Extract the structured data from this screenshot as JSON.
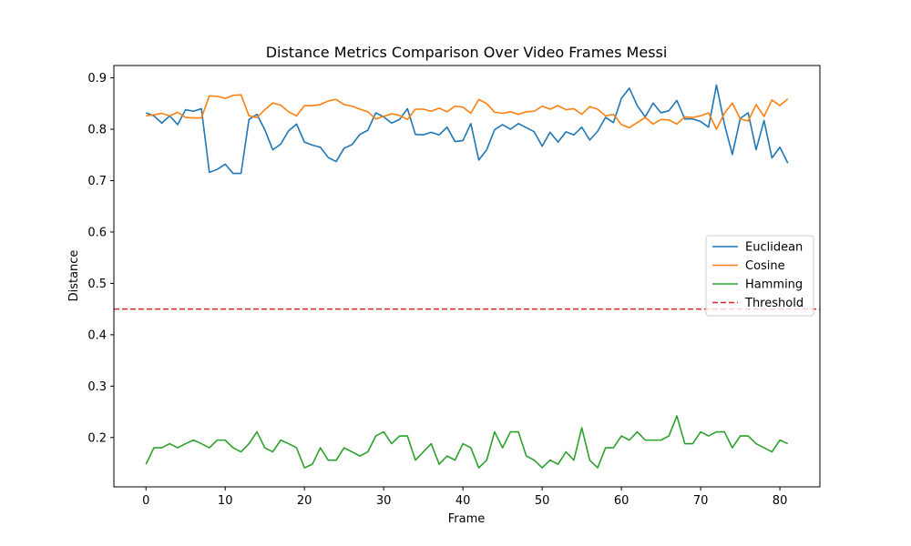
{
  "chart_data": {
    "type": "line",
    "title": "Distance Metrics Comparison Over Video Frames Messi",
    "xlabel": "Frame",
    "ylabel": "Distance",
    "xlim": [
      -4.05,
      85.05
    ],
    "ylim": [
      0.104,
      0.924
    ],
    "xticks": [
      0,
      10,
      20,
      30,
      40,
      50,
      60,
      70,
      80
    ],
    "yticks": [
      0.2,
      0.3,
      0.4,
      0.5,
      0.6,
      0.7,
      0.8,
      0.9
    ],
    "grid": false,
    "legend_position": "center-right",
    "series": [
      {
        "name": "Euclidean",
        "color": "#1f77b4",
        "values": [
          0.832,
          0.826,
          0.812,
          0.826,
          0.809,
          0.838,
          0.835,
          0.84,
          0.716,
          0.722,
          0.732,
          0.714,
          0.714,
          0.819,
          0.829,
          0.799,
          0.76,
          0.771,
          0.797,
          0.81,
          0.775,
          0.769,
          0.765,
          0.745,
          0.737,
          0.763,
          0.77,
          0.79,
          0.798,
          0.832,
          0.824,
          0.812,
          0.819,
          0.84,
          0.79,
          0.789,
          0.794,
          0.789,
          0.804,
          0.776,
          0.778,
          0.811,
          0.74,
          0.76,
          0.799,
          0.809,
          0.8,
          0.811,
          0.803,
          0.795,
          0.767,
          0.794,
          0.775,
          0.795,
          0.789,
          0.804,
          0.779,
          0.796,
          0.823,
          0.813,
          0.86,
          0.88,
          0.846,
          0.824,
          0.851,
          0.832,
          0.836,
          0.856,
          0.82,
          0.82,
          0.815,
          0.804,
          0.886,
          0.81,
          0.751,
          0.821,
          0.832,
          0.76,
          0.817,
          0.744,
          0.765,
          0.734
        ]
      },
      {
        "name": "Cosine",
        "color": "#ff7f0e",
        "values": [
          0.826,
          0.828,
          0.831,
          0.826,
          0.833,
          0.823,
          0.822,
          0.822,
          0.865,
          0.864,
          0.86,
          0.866,
          0.867,
          0.826,
          0.823,
          0.838,
          0.851,
          0.847,
          0.834,
          0.826,
          0.846,
          0.846,
          0.848,
          0.855,
          0.858,
          0.848,
          0.845,
          0.839,
          0.834,
          0.82,
          0.825,
          0.83,
          0.827,
          0.819,
          0.839,
          0.839,
          0.835,
          0.841,
          0.834,
          0.845,
          0.843,
          0.831,
          0.858,
          0.85,
          0.833,
          0.831,
          0.834,
          0.829,
          0.834,
          0.835,
          0.845,
          0.839,
          0.846,
          0.838,
          0.84,
          0.829,
          0.844,
          0.839,
          0.826,
          0.829,
          0.809,
          0.803,
          0.813,
          0.823,
          0.81,
          0.819,
          0.818,
          0.81,
          0.824,
          0.823,
          0.826,
          0.832,
          0.8,
          0.831,
          0.851,
          0.82,
          0.816,
          0.848,
          0.825,
          0.857,
          0.846,
          0.859
        ]
      },
      {
        "name": "Hamming",
        "color": "#2ca02c",
        "values": [
          0.148,
          0.18,
          0.18,
          0.188,
          0.18,
          0.188,
          0.195,
          0.188,
          0.18,
          0.195,
          0.195,
          0.18,
          0.172,
          0.188,
          0.211,
          0.18,
          0.172,
          0.195,
          0.188,
          0.18,
          0.141,
          0.148,
          0.18,
          0.156,
          0.156,
          0.18,
          0.172,
          0.164,
          0.172,
          0.203,
          0.211,
          0.188,
          0.203,
          0.203,
          0.156,
          0.172,
          0.188,
          0.148,
          0.164,
          0.156,
          0.188,
          0.18,
          0.141,
          0.156,
          0.211,
          0.18,
          0.211,
          0.211,
          0.164,
          0.156,
          0.141,
          0.156,
          0.148,
          0.172,
          0.156,
          0.219,
          0.156,
          0.141,
          0.18,
          0.18,
          0.203,
          0.195,
          0.211,
          0.195,
          0.195,
          0.195,
          0.203,
          0.242,
          0.188,
          0.188,
          0.211,
          0.203,
          0.211,
          0.211,
          0.18,
          0.203,
          0.203,
          0.188,
          0.18,
          0.172,
          0.195,
          0.188
        ]
      }
    ],
    "threshold": {
      "name": "Threshold",
      "value": 0.45,
      "color": "#d62728",
      "style": "dashed"
    }
  }
}
